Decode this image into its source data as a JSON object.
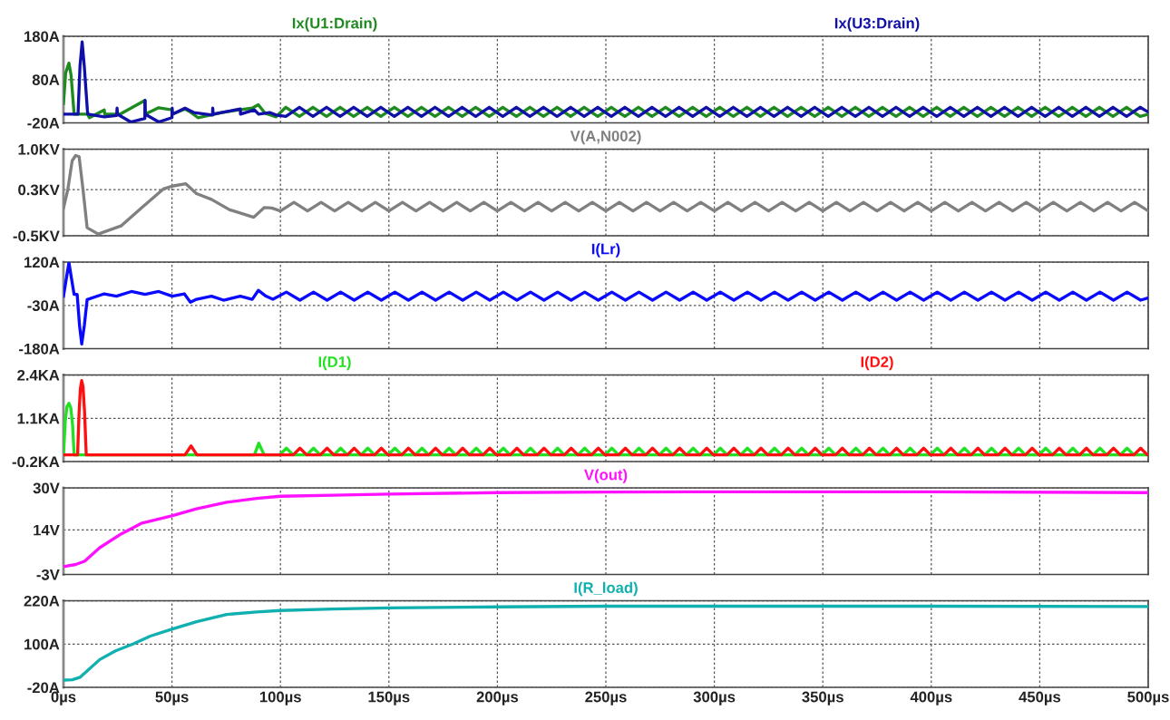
{
  "chart_data": [
    {
      "type": "line",
      "xlim": [
        0,
        500
      ],
      "xticks": [
        {
          "value": 0,
          "label": null
        },
        {
          "value": 50,
          "label": null
        },
        {
          "value": 100,
          "label": null
        },
        {
          "value": 150,
          "label": null
        },
        {
          "value": 200,
          "label": null
        },
        {
          "value": 250,
          "label": null
        },
        {
          "value": 300,
          "label": null
        },
        {
          "value": 350,
          "label": null
        },
        {
          "value": 400,
          "label": null
        },
        {
          "value": 450,
          "label": null
        },
        {
          "value": 500,
          "label": null
        }
      ],
      "ylim": [
        -20,
        180
      ],
      "yticks": [
        {
          "value": -20,
          "label": "-20A"
        },
        {
          "value": 80,
          "label": "80A"
        },
        {
          "value": 180,
          "label": "180A"
        }
      ],
      "grid": true,
      "legend": false,
      "marker": "none",
      "line_style": "solid",
      "tick_labels": "y",
      "series": [
        {
          "name": "Ix(U1:Drain)",
          "color": "#1f8a1f",
          "x": [
            0,
            1,
            2.5,
            3.5,
            4.9,
            11,
            12,
            18.8,
            19,
            26,
            37.5,
            37.6,
            43.9,
            50,
            50.1,
            56,
            58.5,
            62,
            73,
            81,
            87,
            89.8,
            93,
            98,
            102.5,
            108.75,
            115,
            121.25,
            127.5,
            133.75,
            140,
            146.25,
            152.5,
            158.75,
            165,
            171.25,
            177.5,
            183.75,
            190,
            196.25,
            202.5,
            208.75,
            215,
            221.25,
            227.5,
            233.75,
            240,
            246.25,
            252.5,
            258.75,
            265,
            271.25,
            277.5,
            283.75,
            290,
            296.25,
            302.5,
            308.75,
            315,
            321.25,
            327.5,
            333.75,
            340,
            346.25,
            352.5,
            358.75,
            365,
            371.25,
            377.5,
            383.75,
            390,
            396.25,
            402.5,
            408.75,
            415,
            421.25,
            427.5,
            433.75,
            440,
            446.25,
            452.5,
            458.75,
            465,
            471.25,
            477.5,
            483.75,
            490,
            496.25,
            500
          ],
          "values": [
            25,
            95,
            118,
            90,
            0,
            0,
            -8,
            10,
            0,
            0,
            32,
            0,
            15,
            10,
            0,
            12,
            5,
            -8,
            4,
            10,
            14,
            22,
            2,
            -6,
            16,
            -5,
            16,
            -5,
            16,
            -5,
            16,
            -5,
            16,
            -5,
            16,
            -5,
            16,
            -5,
            16,
            -5,
            16,
            -5,
            16,
            -5,
            16,
            -5,
            16,
            -5,
            16,
            -5,
            16,
            -5,
            16,
            -5,
            16,
            -5,
            16,
            -5,
            16,
            -5,
            16,
            -5,
            16,
            -5,
            16,
            -5,
            16,
            -5,
            16,
            -5,
            16,
            -5,
            16,
            -5,
            16,
            -5,
            16,
            -5,
            16,
            -5,
            16,
            -5,
            16,
            -5,
            16,
            -5,
            16,
            -5,
            0
          ]
        },
        {
          "name": "Ix(U3:Drain)",
          "color": "#1010a8",
          "x": [
            0,
            6.7,
            7.6,
            8.6,
            9.6,
            11,
            11.2,
            18.8,
            24.5,
            24.7,
            24.9,
            31,
            37.5,
            37.6,
            37.7,
            43.9,
            50,
            50.1,
            50.2,
            56,
            60,
            68.7,
            68.8,
            69,
            75,
            81.5,
            81.6,
            88,
            90,
            95,
            98,
            102.5,
            108.75,
            115,
            121.25,
            127.5,
            133.75,
            140,
            146.25,
            152.5,
            158.75,
            165,
            171.25,
            177.5,
            183.75,
            190,
            196.25,
            202.5,
            208.75,
            215,
            221.25,
            227.5,
            233.75,
            240,
            246.25,
            252.5,
            258.75,
            265,
            271.25,
            277.5,
            283.75,
            290,
            296.25,
            302.5,
            308.75,
            315,
            321.25,
            327.5,
            333.75,
            340,
            346.25,
            352.5,
            358.75,
            365,
            371.25,
            377.5,
            383.75,
            390,
            396.25,
            402.5,
            408.75,
            415,
            421.25,
            427.5,
            433.75,
            440,
            446.25,
            452.5,
            458.75,
            465,
            471.25,
            477.5,
            483.75,
            490,
            496.25,
            500
          ],
          "values": [
            0,
            0,
            110,
            167,
            110,
            10,
            0,
            -6,
            -3,
            14,
            0,
            -18,
            -10,
            32,
            0,
            -18,
            -8,
            14,
            0,
            14,
            4,
            -2,
            14,
            0,
            6,
            12,
            0,
            10,
            0,
            4,
            -2,
            -5,
            16,
            -5,
            16,
            -5,
            16,
            -5,
            16,
            -5,
            16,
            -5,
            16,
            -5,
            16,
            -5,
            16,
            -5,
            16,
            -5,
            16,
            -5,
            16,
            -5,
            16,
            -5,
            16,
            -5,
            16,
            -5,
            16,
            -5,
            16,
            -5,
            16,
            -5,
            16,
            -5,
            16,
            -5,
            16,
            -5,
            16,
            -5,
            16,
            -5,
            16,
            -5,
            16,
            -5,
            16,
            -5,
            16,
            -5,
            16,
            -5,
            16,
            -5,
            16,
            -5,
            16,
            -5,
            16,
            -5,
            16,
            5
          ]
        }
      ]
    },
    {
      "type": "line",
      "xlim": [
        0,
        500
      ],
      "xticks": [
        {
          "value": 0,
          "label": null
        },
        {
          "value": 50,
          "label": null
        },
        {
          "value": 100,
          "label": null
        },
        {
          "value": 150,
          "label": null
        },
        {
          "value": 200,
          "label": null
        },
        {
          "value": 250,
          "label": null
        },
        {
          "value": 300,
          "label": null
        },
        {
          "value": 350,
          "label": null
        },
        {
          "value": 400,
          "label": null
        },
        {
          "value": 450,
          "label": null
        },
        {
          "value": 500,
          "label": null
        }
      ],
      "ylim": [
        -0.5,
        1.0
      ],
      "yticks": [
        {
          "value": -0.5,
          "label": "-0.5KV"
        },
        {
          "value": 0.3,
          "label": "0.3KV"
        },
        {
          "value": 1.0,
          "label": "1.0KV"
        }
      ],
      "grid": true,
      "legend": false,
      "marker": "none",
      "line_style": "solid",
      "tick_labels": "y",
      "series": [
        {
          "name": "V(A,N002)",
          "color": "#808080",
          "x": [
            0,
            2,
            4,
            5.6,
            7.2,
            9,
            10.9,
            16,
            26.5,
            36.2,
            46,
            50.1,
            56.4,
            61.3,
            68.2,
            76.6,
            87.7,
            92.6,
            96,
            100,
            106.25,
            112.5,
            118.75,
            125,
            131.25,
            137.5,
            143.75,
            150,
            156.25,
            162.5,
            168.75,
            175,
            181.25,
            187.5,
            193.75,
            200,
            206.25,
            212.5,
            218.75,
            225,
            231.25,
            237.5,
            243.75,
            250,
            256.25,
            262.5,
            268.75,
            275,
            281.25,
            287.5,
            293.75,
            300,
            306.25,
            312.5,
            318.75,
            325,
            331.25,
            337.5,
            343.75,
            350,
            356.25,
            362.5,
            368.75,
            375,
            381.25,
            387.5,
            393.75,
            400,
            406.25,
            412.5,
            418.75,
            425,
            431.25,
            437.5,
            443.75,
            450,
            456.25,
            462.5,
            468.75,
            475,
            481.25,
            487.5,
            493.75,
            500
          ],
          "values": [
            -0.02,
            0.3,
            0.8,
            0.89,
            0.87,
            0.3,
            -0.36,
            -0.47,
            -0.33,
            -0.01,
            0.31,
            0.36,
            0.4,
            0.23,
            0.13,
            -0.05,
            -0.18,
            -0.01,
            -0.02,
            -0.07,
            0.08,
            -0.07,
            0.08,
            -0.07,
            0.08,
            -0.07,
            0.08,
            -0.07,
            0.08,
            -0.07,
            0.08,
            -0.07,
            0.08,
            -0.07,
            0.08,
            -0.07,
            0.08,
            -0.07,
            0.08,
            -0.07,
            0.08,
            -0.07,
            0.08,
            -0.07,
            0.08,
            -0.07,
            0.08,
            -0.07,
            0.08,
            -0.07,
            0.08,
            -0.07,
            0.08,
            -0.07,
            0.08,
            -0.07,
            0.08,
            -0.07,
            0.08,
            -0.07,
            0.08,
            -0.07,
            0.08,
            -0.07,
            0.08,
            -0.07,
            0.08,
            -0.07,
            0.08,
            -0.07,
            0.08,
            -0.07,
            0.08,
            -0.07,
            0.08,
            -0.07,
            0.08,
            -0.07,
            0.08,
            -0.07,
            0.08,
            -0.07,
            0.08,
            -0.07
          ]
        }
      ]
    },
    {
      "type": "line",
      "xlim": [
        0,
        500
      ],
      "xticks": [
        {
          "value": 0,
          "label": null
        },
        {
          "value": 50,
          "label": null
        },
        {
          "value": 100,
          "label": null
        },
        {
          "value": 150,
          "label": null
        },
        {
          "value": 200,
          "label": null
        },
        {
          "value": 250,
          "label": null
        },
        {
          "value": 300,
          "label": null
        },
        {
          "value": 350,
          "label": null
        },
        {
          "value": 400,
          "label": null
        },
        {
          "value": 450,
          "label": null
        },
        {
          "value": 500,
          "label": null
        }
      ],
      "ylim": [
        -180,
        120
      ],
      "yticks": [
        {
          "value": -180,
          "label": "-180A"
        },
        {
          "value": -30,
          "label": "-30A"
        },
        {
          "value": 120,
          "label": "120A"
        }
      ],
      "grid": true,
      "legend": false,
      "marker": "none",
      "line_style": "solid",
      "tick_labels": "y",
      "series": [
        {
          "name": "I(Lr)",
          "color": "#0a0aff",
          "x": [
            0,
            2.5,
            4.9,
            6.3,
            7.4,
            8.4,
            9.6,
            10.9,
            18.8,
            24.4,
            31.3,
            37.6,
            43.9,
            50.1,
            55.7,
            58.5,
            61.3,
            68.2,
            73.8,
            81.5,
            87,
            89.8,
            93.3,
            96.5,
            102.75,
            109,
            115.25,
            121.5,
            127.75,
            134,
            140.25,
            146.5,
            152.75,
            159,
            165.25,
            171.5,
            177.75,
            184,
            190.25,
            196.5,
            202.75,
            209,
            215.25,
            221.5,
            227.75,
            234,
            240.25,
            246.5,
            252.75,
            259,
            265.25,
            271.5,
            277.75,
            284,
            290.25,
            296.5,
            302.75,
            309,
            315.25,
            321.5,
            327.75,
            334,
            340.25,
            346.5,
            352.75,
            359,
            365.25,
            371.5,
            377.75,
            384,
            390.25,
            396.5,
            402.75,
            409,
            415.25,
            421.5,
            427.75,
            434,
            440.25,
            446.5,
            452.75,
            459,
            465.25,
            471.5,
            477.75,
            484,
            490.25,
            496.5,
            500
          ],
          "values": [
            2,
            118,
            8,
            8,
            -100,
            -164,
            -100,
            -10,
            10,
            2,
            18,
            8,
            18,
            2,
            10,
            -19,
            -9,
            2,
            -12,
            2,
            -9,
            22,
            2,
            -9,
            16,
            -12,
            16,
            -12,
            16,
            -12,
            16,
            -12,
            16,
            -12,
            16,
            -12,
            16,
            -12,
            16,
            -12,
            16,
            -12,
            16,
            -12,
            16,
            -12,
            16,
            -12,
            16,
            -12,
            16,
            -12,
            16,
            -12,
            16,
            -12,
            16,
            -12,
            16,
            -12,
            16,
            -12,
            16,
            -12,
            16,
            -12,
            16,
            -12,
            16,
            -12,
            16,
            -12,
            16,
            -12,
            16,
            -12,
            16,
            -12,
            16,
            -12,
            16,
            -12,
            16,
            -12,
            16,
            -12,
            16,
            -12,
            -4
          ]
        }
      ]
    },
    {
      "type": "line",
      "xlim": [
        0,
        500
      ],
      "xticks": [
        {
          "value": 0,
          "label": null
        },
        {
          "value": 50,
          "label": null
        },
        {
          "value": 100,
          "label": null
        },
        {
          "value": 150,
          "label": null
        },
        {
          "value": 200,
          "label": null
        },
        {
          "value": 250,
          "label": null
        },
        {
          "value": 300,
          "label": null
        },
        {
          "value": 350,
          "label": null
        },
        {
          "value": 400,
          "label": null
        },
        {
          "value": 450,
          "label": null
        },
        {
          "value": 500,
          "label": null
        }
      ],
      "ylim": [
        -0.2,
        2.4
      ],
      "yticks": [
        {
          "value": -0.2,
          "label": "-0.2KA"
        },
        {
          "value": 1.1,
          "label": "1.1KA"
        },
        {
          "value": 2.4,
          "label": "2.4KA"
        }
      ],
      "grid": true,
      "legend": false,
      "marker": "none",
      "line_style": "solid",
      "tick_labels": "y",
      "series": [
        {
          "name": "I(D1)",
          "color": "#22e022",
          "x": [
            0,
            0.8,
            1.6,
            2.5,
            3.4,
            4.2,
            4.9,
            88,
            90,
            92.5,
            99.6,
            102.75,
            105.85,
            112.15,
            115.25,
            118.35,
            124.65,
            127.75,
            130.85,
            137.15,
            140.25,
            143.35,
            149.65,
            152.75,
            155.85,
            162.15,
            165.25,
            168.35,
            174.65,
            177.75,
            180.85,
            187.15,
            190.25,
            193.35,
            199.65,
            202.75,
            205.85,
            212.15,
            215.25,
            218.35,
            224.65,
            227.75,
            230.85,
            237.15,
            240.25,
            243.35,
            249.65,
            252.75,
            255.85,
            262.15,
            265.25,
            268.35,
            274.65,
            277.75,
            280.85,
            287.15,
            290.25,
            293.35,
            299.65,
            302.75,
            305.85,
            312.15,
            315.25,
            318.35,
            324.65,
            327.75,
            330.85,
            337.15,
            340.25,
            343.35,
            349.65,
            352.75,
            355.85,
            362.15,
            365.25,
            368.35,
            374.65,
            377.75,
            380.85,
            387.15,
            390.25,
            393.35,
            399.65,
            402.75,
            405.85,
            412.15,
            415.25,
            418.35,
            424.65,
            427.75,
            430.85,
            437.15,
            440.25,
            443.35,
            449.65,
            452.75,
            455.85,
            462.15,
            465.25,
            468.35,
            474.65,
            477.75,
            480.85,
            487.15,
            490.25,
            493.35,
            499.65
          ],
          "values": [
            0,
            1.0,
            1.45,
            1.55,
            1.4,
            0.9,
            0,
            0,
            0.35,
            0,
            0,
            0.2,
            0,
            0,
            0.2,
            0,
            0,
            0.2,
            0,
            0,
            0.2,
            0,
            0,
            0.2,
            0,
            0,
            0.2,
            0,
            0,
            0.2,
            0,
            0,
            0.2,
            0,
            0,
            0.2,
            0,
            0,
            0.2,
            0,
            0,
            0.2,
            0,
            0,
            0.2,
            0,
            0,
            0.2,
            0,
            0,
            0.2,
            0,
            0,
            0.2,
            0,
            0,
            0.2,
            0,
            0,
            0.2,
            0,
            0,
            0.2,
            0,
            0,
            0.2,
            0,
            0,
            0.2,
            0,
            0,
            0.2,
            0,
            0,
            0.2,
            0,
            0,
            0.2,
            0,
            0,
            0.2,
            0,
            0,
            0.2,
            0,
            0,
            0.2,
            0,
            0,
            0.2,
            0,
            0,
            0.2,
            0,
            0,
            0.2,
            0,
            0,
            0.2,
            0,
            0,
            0.2,
            0,
            0,
            0.2,
            0,
            0
          ]
        },
        {
          "name": "I(D2)",
          "color": "#ff1010",
          "x": [
            0,
            6.5,
            7.2,
            7.8,
            8.4,
            9.0,
            9.7,
            10.5,
            56,
            58.8,
            61.5,
            102.8,
            105.9,
            109,
            112.1,
            118.4,
            121.5,
            124.6,
            130.9,
            134,
            137.1,
            143.4,
            146.5,
            149.6,
            155.9,
            159,
            162.1,
            168.4,
            171.5,
            174.6,
            180.9,
            184,
            187.1,
            193.4,
            196.5,
            199.6,
            205.9,
            209,
            212.1,
            218.4,
            221.5,
            224.6,
            230.9,
            234,
            237.1,
            243.4,
            246.5,
            249.6,
            255.9,
            259,
            262.1,
            268.4,
            271.5,
            274.6,
            280.9,
            284,
            287.1,
            293.4,
            296.5,
            299.6,
            305.9,
            309,
            312.1,
            318.4,
            321.5,
            324.6,
            330.9,
            334,
            337.1,
            343.4,
            346.5,
            349.6,
            355.9,
            359,
            362.1,
            368.4,
            371.5,
            374.6,
            380.9,
            384,
            387.1,
            393.4,
            396.5,
            399.6,
            405.9,
            409,
            412.1,
            418.4,
            421.5,
            424.6,
            430.9,
            434,
            437.1,
            443.4,
            446.5,
            449.6,
            455.9,
            459,
            462.1,
            468.4,
            471.5,
            474.6,
            480.9,
            484,
            487.1,
            493.4,
            496.5,
            499.6,
            500
          ],
          "values": [
            0,
            0,
            1.3,
            2.0,
            2.23,
            2.05,
            1.3,
            0,
            0,
            0.27,
            0,
            0,
            0,
            0.2,
            0,
            0,
            0.2,
            0,
            0,
            0.2,
            0,
            0,
            0.2,
            0,
            0,
            0.2,
            0,
            0,
            0.2,
            0,
            0,
            0.2,
            0,
            0,
            0.2,
            0,
            0,
            0.2,
            0,
            0,
            0.2,
            0,
            0,
            0.2,
            0,
            0,
            0.2,
            0,
            0,
            0.2,
            0,
            0,
            0.2,
            0,
            0,
            0.2,
            0,
            0,
            0.2,
            0,
            0,
            0.2,
            0,
            0,
            0.2,
            0,
            0,
            0.2,
            0,
            0,
            0.2,
            0,
            0,
            0.2,
            0,
            0,
            0.2,
            0,
            0,
            0.2,
            0,
            0,
            0.2,
            0,
            0,
            0.2,
            0,
            0,
            0.2,
            0,
            0,
            0.2,
            0,
            0,
            0.2,
            0,
            0,
            0.2,
            0,
            0,
            0.2,
            0,
            0,
            0.2,
            0,
            0,
            0.2,
            0,
            0
          ]
        }
      ]
    },
    {
      "type": "line",
      "xlim": [
        0,
        500
      ],
      "xticks": [
        {
          "value": 0,
          "label": null
        },
        {
          "value": 50,
          "label": null
        },
        {
          "value": 100,
          "label": null
        },
        {
          "value": 150,
          "label": null
        },
        {
          "value": 200,
          "label": null
        },
        {
          "value": 250,
          "label": null
        },
        {
          "value": 300,
          "label": null
        },
        {
          "value": 350,
          "label": null
        },
        {
          "value": 400,
          "label": null
        },
        {
          "value": 450,
          "label": null
        },
        {
          "value": 500,
          "label": null
        }
      ],
      "ylim": [
        -3,
        30
      ],
      "yticks": [
        {
          "value": -3,
          "label": "-3V"
        },
        {
          "value": 14,
          "label": "14V"
        },
        {
          "value": 30,
          "label": "30V"
        }
      ],
      "grid": true,
      "legend": false,
      "marker": "none",
      "line_style": "solid",
      "tick_labels": "y",
      "series": [
        {
          "name": "V(out)",
          "color": "#ff10ff",
          "x": [
            0,
            5.6,
            9.7,
            16.7,
            26.5,
            36.2,
            49.9,
            61.3,
            75.2,
            89.1,
            100,
            124,
            150,
            200,
            250,
            300,
            400,
            500
          ],
          "values": [
            0,
            0.8,
            2,
            7.2,
            12.4,
            16.6,
            19.3,
            22,
            24.5,
            26,
            26.8,
            27.2,
            27.6,
            28.2,
            28.4,
            28.5,
            28.5,
            28.2
          ]
        }
      ]
    },
    {
      "type": "line",
      "xlim": [
        0,
        500
      ],
      "xticks": [
        {
          "value": 0,
          "label": "0µs"
        },
        {
          "value": 50,
          "label": "50µs"
        },
        {
          "value": 100,
          "label": "100µs"
        },
        {
          "value": 150,
          "label": "150µs"
        },
        {
          "value": 200,
          "label": "200µs"
        },
        {
          "value": 250,
          "label": "250µs"
        },
        {
          "value": 300,
          "label": "300µs"
        },
        {
          "value": 350,
          "label": "350µs"
        },
        {
          "value": 400,
          "label": "400µs"
        },
        {
          "value": 450,
          "label": "450µs"
        },
        {
          "value": 500,
          "label": "500µs"
        }
      ],
      "ylim": [
        -20,
        220
      ],
      "yticks": [
        {
          "value": -20,
          "label": "-20A"
        },
        {
          "value": 100,
          "label": "100A"
        },
        {
          "value": 220,
          "label": "220A"
        }
      ],
      "grid": true,
      "legend": false,
      "marker": "none",
      "line_style": "solid",
      "series": [
        {
          "name": "I(R_load)",
          "color": "#10b0b0",
          "x": [
            0,
            4,
            7.7,
            16.7,
            24,
            32,
            40,
            49.9,
            61.3,
            75.2,
            89,
            100,
            124,
            150,
            200,
            250,
            300,
            400,
            500
          ],
          "values": [
            0,
            1,
            8,
            57,
            81,
            100,
            122,
            141,
            162,
            182,
            189,
            193,
            197,
            200,
            203,
            205,
            205,
            205,
            204
          ]
        }
      ]
    }
  ]
}
